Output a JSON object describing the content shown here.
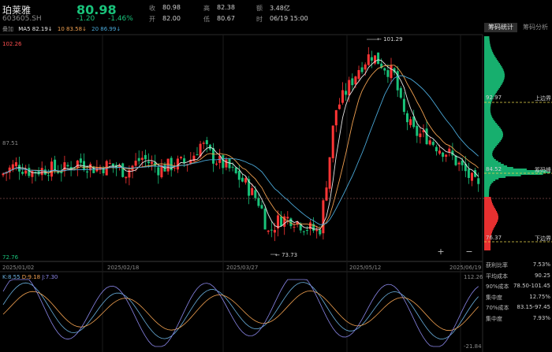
{
  "stock": {
    "name": "珀莱雅",
    "code": "603605.SH",
    "price": "80.98",
    "change": "-1.20",
    "change_pct": "-1.46%",
    "price_color": "#19c27a"
  },
  "stats": {
    "shou_label": "收",
    "shou": "80.98",
    "kai_label": "开",
    "kai": "82.00",
    "gao_label": "高",
    "gao": "82.38",
    "di_label": "低",
    "di": "80.67",
    "e_label": "额",
    "e": "3.48亿",
    "shi_label": "时",
    "shi": "06/19 15:00"
  },
  "ma_legend": {
    "overlay": "叠加",
    "ma5": "MA5 82.19↓",
    "ma10": "10 83.58↓",
    "ma20": "20 86.99↓",
    "ma5_color": "#e6e6e6",
    "ma10_color": "#f0a050",
    "ma20_color": "#4aa8d8"
  },
  "price_axis": {
    "top": "102.26",
    "mid": "87.51",
    "bottom": "72.76"
  },
  "annotations": {
    "high": "101.29",
    "low": "73.73"
  },
  "date_axis": [
    "2025/01/02",
    "2025/02/18",
    "2025/03/27",
    "2025/05/12",
    "2025/06/19"
  ],
  "kdj": {
    "k": "K:8.55",
    "d": "D:9.18",
    "j": "J:7.30",
    "k_color": "#6ab0de",
    "d_color": "#f0a050",
    "j_color": "#8a86e8",
    "top_val": "112.26",
    "bottom_val": "-21.84"
  },
  "chip_panel": {
    "tab_active": "筹码统计",
    "tab_inactive": "筹码分析",
    "upper_value": "92.97",
    "upper_label": "上边界",
    "peak_value": "84.52",
    "peak_label": "筹码峰",
    "lower_value": "76.37",
    "lower_label": "下边界",
    "rows": [
      {
        "k": "获利比率",
        "v": "7.53%"
      },
      {
        "k": "平均成本",
        "v": "90.25"
      },
      {
        "k": "90%成本",
        "v": "78.50-101.45"
      },
      {
        "k": "集中度",
        "v": "12.75%"
      },
      {
        "k": "70%成本",
        "v": "83.15-97.45"
      },
      {
        "k": "集中度",
        "v": "7.93%"
      }
    ]
  },
  "zoom": {
    "plus": "+",
    "minus": "−"
  },
  "colors": {
    "up": "#ff3535",
    "down": "#19c27a",
    "upper_line": "#e8d44d"
  }
}
